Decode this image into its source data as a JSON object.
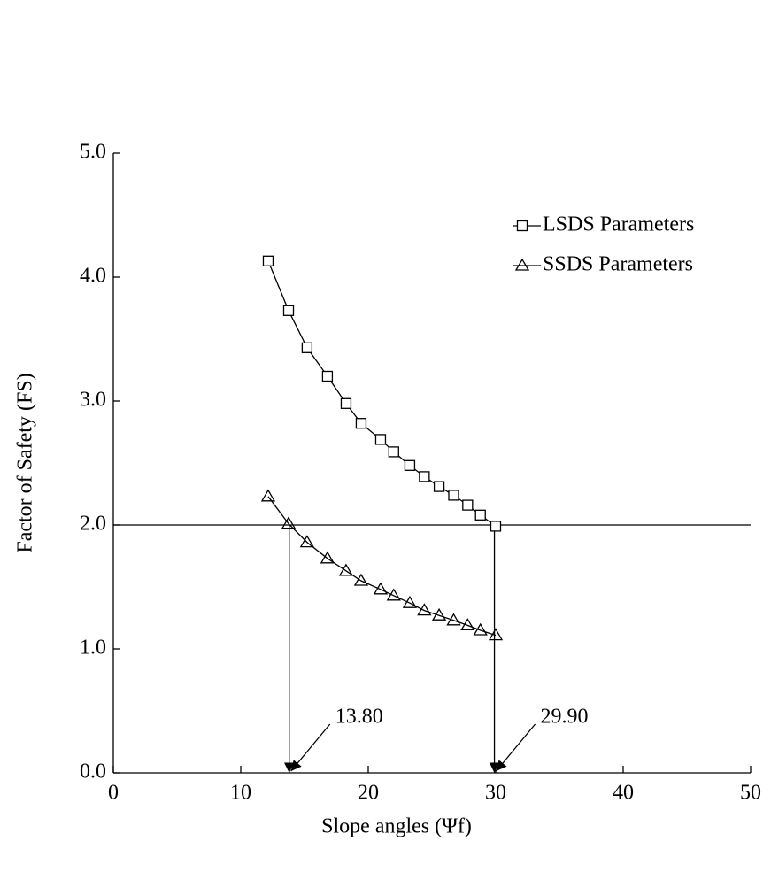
{
  "chart_data": {
    "type": "line",
    "xlabel": "Slope angles (Ψf)",
    "ylabel": "Factor of Safety (FS)",
    "x": [
      12.15,
      13.75,
      15.2,
      16.8,
      18.26,
      19.44,
      20.97,
      22.0,
      23.26,
      24.4,
      25.56,
      26.7,
      27.8,
      28.8,
      30.0
    ],
    "series": [
      {
        "name": "LSDS Parameters",
        "marker": "square",
        "color": "#000000",
        "values": [
          4.13,
          3.73,
          3.43,
          3.2,
          2.98,
          2.82,
          2.69,
          2.59,
          2.48,
          2.39,
          2.31,
          2.24,
          2.16,
          2.08,
          1.99
        ]
      },
      {
        "name": "SSDS Parameters",
        "marker": "triangle",
        "color": "#000000",
        "values": [
          2.23,
          2.01,
          1.86,
          1.73,
          1.63,
          1.55,
          1.48,
          1.43,
          1.37,
          1.31,
          1.27,
          1.23,
          1.19,
          1.15,
          1.11
        ]
      }
    ],
    "xlim": [
      0,
      50
    ],
    "xticks": [
      0,
      10,
      20,
      30,
      40,
      50
    ],
    "ylim": [
      0,
      5
    ],
    "yticks": [
      {
        "value": 0,
        "label": "0.0"
      },
      {
        "value": 1,
        "label": "1.0"
      },
      {
        "value": 2,
        "label": "2.0"
      },
      {
        "value": 3,
        "label": "3.0"
      },
      {
        "value": 4,
        "label": "4.0"
      },
      {
        "value": 5,
        "label": "5.0"
      }
    ],
    "reference_line": 2,
    "markers": [
      {
        "x": 13.8,
        "label": "13.80"
      },
      {
        "x": 29.9,
        "label": "29.90"
      }
    ],
    "legend": "upper right"
  }
}
